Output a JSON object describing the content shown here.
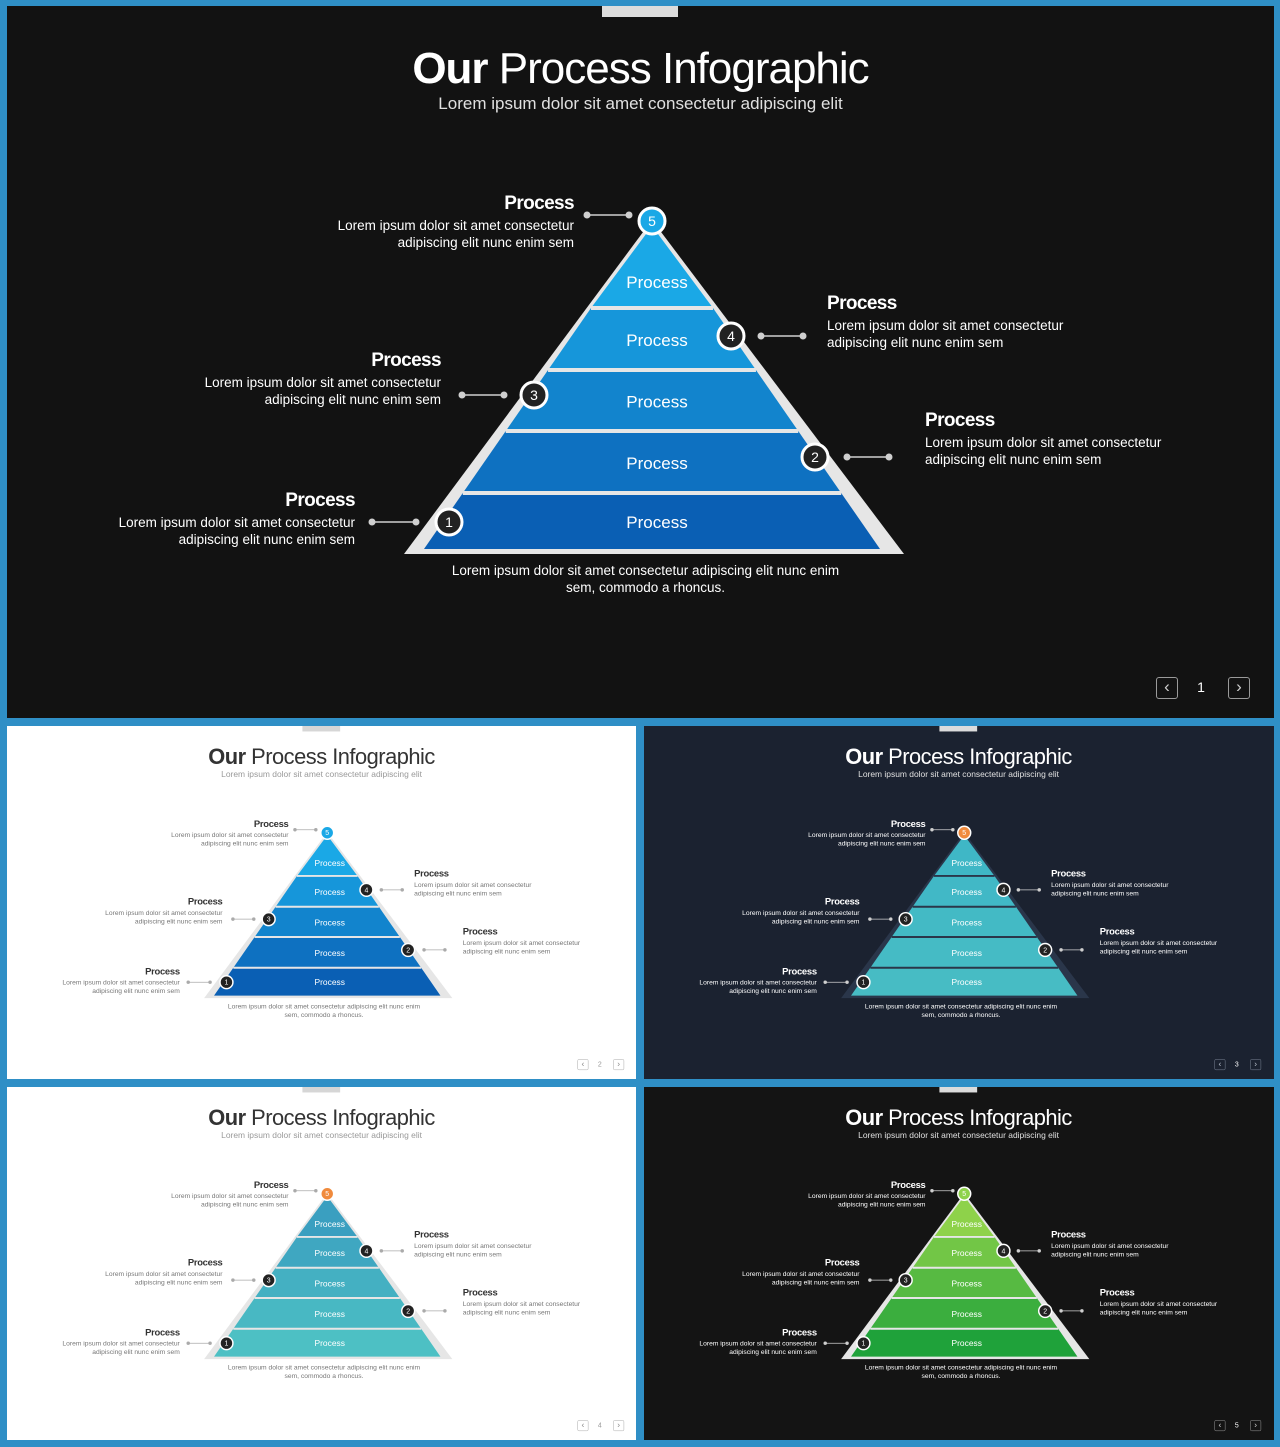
{
  "slides": [
    {
      "title_bold": "Our",
      "title_rest": "Process Infographic",
      "subtitle": "Lorem ipsum dolor sit amet consectetur adipiscing elit",
      "layers": [
        "Process",
        "Process",
        "Process",
        "Process",
        "Process"
      ],
      "steps": [
        {
          "num": "1",
          "heading": "Process",
          "line1": "Lorem ipsum dolor sit amet consectetur",
          "line2": "adipiscing elit nunc enim sem"
        },
        {
          "num": "2",
          "heading": "Process",
          "line1": "Lorem ipsum dolor sit amet consectetur",
          "line2": "adipiscing elit nunc enim sem"
        },
        {
          "num": "3",
          "heading": "Process",
          "line1": "Lorem ipsum dolor sit amet consectetur",
          "line2": "adipiscing elit nunc enim sem"
        },
        {
          "num": "4",
          "heading": "Process",
          "line1": "Lorem ipsum dolor sit amet consectetur",
          "line2": "adipiscing elit nunc enim sem"
        },
        {
          "num": "5",
          "heading": "Process",
          "line1": "Lorem ipsum dolor sit amet consectetur",
          "line2": "adipiscing elit nunc enim sem"
        }
      ],
      "caption_line1": "Lorem ipsum dolor sit amet consectetur adipiscing elit nunc enim",
      "caption_line2": "sem, commodo a rhoncus.",
      "page": "1",
      "colors": {
        "top": "#1aa8e6",
        "bottom": "#0a5fb4",
        "apex": "#1aa8e6",
        "outline": "#e6e6e6"
      }
    },
    {
      "title_bold": "Our",
      "title_rest": "Process Infographic",
      "subtitle": "Lorem ipsum dolor sit amet consectetur adipiscing elit",
      "layers": [
        "Process",
        "Process",
        "Process",
        "Process",
        "Process"
      ],
      "steps": [
        {
          "num": "1",
          "heading": "Process",
          "line1": "Lorem ipsum dolor sit amet consectetur",
          "line2": "adipiscing elit nunc enim sem"
        },
        {
          "num": "2",
          "heading": "Process",
          "line1": "Lorem ipsum dolor sit amet consectetur",
          "line2": "adipiscing elit nunc enim sem"
        },
        {
          "num": "3",
          "heading": "Process",
          "line1": "Lorem ipsum dolor sit amet consectetur",
          "line2": "adipiscing elit nunc enim sem"
        },
        {
          "num": "4",
          "heading": "Process",
          "line1": "Lorem ipsum dolor sit amet consectetur",
          "line2": "adipiscing elit nunc enim sem"
        },
        {
          "num": "5",
          "heading": "Process",
          "line1": "Lorem ipsum dolor sit amet consectetur",
          "line2": "adipiscing elit nunc enim sem"
        }
      ],
      "caption_line1": "Lorem ipsum dolor sit amet consectetur adipiscing elit nunc enim",
      "caption_line2": "sem, commodo a rhoncus.",
      "page": "2",
      "colors": {
        "top": "#1aa8e6",
        "bottom": "#0a5fb4",
        "apex": "#1aa8e6",
        "outline": "#e6e6e6"
      }
    },
    {
      "title_bold": "Our",
      "title_rest": "Process Infographic",
      "subtitle": "Lorem ipsum dolor sit amet consectetur adipiscing elit",
      "layers": [
        "Process",
        "Process",
        "Process",
        "Process",
        "Process"
      ],
      "steps": [
        {
          "num": "1",
          "heading": "Process",
          "line1": "Lorem ipsum dolor sit amet consectetur",
          "line2": "adipiscing elit nunc enim sem"
        },
        {
          "num": "2",
          "heading": "Process",
          "line1": "Lorem ipsum dolor sit amet consectetur",
          "line2": "adipiscing elit nunc enim sem"
        },
        {
          "num": "3",
          "heading": "Process",
          "line1": "Lorem ipsum dolor sit amet consectetur",
          "line2": "adipiscing elit nunc enim sem"
        },
        {
          "num": "4",
          "heading": "Process",
          "line1": "Lorem ipsum dolor sit amet consectetur",
          "line2": "adipiscing elit nunc enim sem"
        },
        {
          "num": "5",
          "heading": "Process",
          "line1": "Lorem ipsum dolor sit amet consectetur",
          "line2": "adipiscing elit nunc enim sem"
        }
      ],
      "caption_line1": "Lorem ipsum dolor sit amet consectetur adipiscing elit nunc enim",
      "caption_line2": "sem, commodo a rhoncus.",
      "page": "3",
      "colors": {
        "top": "#3fb7c6",
        "bottom": "#47bcc4",
        "apex": "#f08a3c",
        "outline": "#2a364a"
      }
    },
    {
      "title_bold": "Our",
      "title_rest": "Process Infographic",
      "subtitle": "Lorem ipsum dolor sit amet consectetur adipiscing elit",
      "layers": [
        "Process",
        "Process",
        "Process",
        "Process",
        "Process"
      ],
      "steps": [
        {
          "num": "1",
          "heading": "Process",
          "line1": "Lorem ipsum dolor sit amet consectetur",
          "line2": "adipiscing elit nunc enim sem"
        },
        {
          "num": "2",
          "heading": "Process",
          "line1": "Lorem ipsum dolor sit amet consectetur",
          "line2": "adipiscing elit nunc enim sem"
        },
        {
          "num": "3",
          "heading": "Process",
          "line1": "Lorem ipsum dolor sit amet consectetur",
          "line2": "adipiscing elit nunc enim sem"
        },
        {
          "num": "4",
          "heading": "Process",
          "line1": "Lorem ipsum dolor sit amet consectetur",
          "line2": "adipiscing elit nunc enim sem"
        },
        {
          "num": "5",
          "heading": "Process",
          "line1": "Lorem ipsum dolor sit amet consectetur",
          "line2": "adipiscing elit nunc enim sem"
        }
      ],
      "caption_line1": "Lorem ipsum dolor sit amet consectetur adipiscing elit nunc enim",
      "caption_line2": "sem, commodo a rhoncus.",
      "page": "4",
      "colors": {
        "top": "#3a9fc0",
        "bottom": "#4dc0c4",
        "apex": "#f08a3c",
        "outline": "#e6e6e6"
      }
    },
    {
      "title_bold": "Our",
      "title_rest": "Process Infographic",
      "subtitle": "Lorem ipsum dolor sit amet consectetur adipiscing elit",
      "layers": [
        "Process",
        "Process",
        "Process",
        "Process",
        "Process"
      ],
      "steps": [
        {
          "num": "1",
          "heading": "Process",
          "line1": "Lorem ipsum dolor sit amet consectetur",
          "line2": "adipiscing elit nunc enim sem"
        },
        {
          "num": "2",
          "heading": "Process",
          "line1": "Lorem ipsum dolor sit amet consectetur",
          "line2": "adipiscing elit nunc enim sem"
        },
        {
          "num": "3",
          "heading": "Process",
          "line1": "Lorem ipsum dolor sit amet consectetur",
          "line2": "adipiscing elit nunc enim sem"
        },
        {
          "num": "4",
          "heading": "Process",
          "line1": "Lorem ipsum dolor sit amet consectetur",
          "line2": "adipiscing elit nunc enim sem"
        },
        {
          "num": "5",
          "heading": "Process",
          "line1": "Lorem ipsum dolor sit amet consectetur",
          "line2": "adipiscing elit nunc enim sem"
        }
      ],
      "caption_line1": "Lorem ipsum dolor sit amet consectetur adipiscing elit nunc enim",
      "caption_line2": "sem, commodo a rhoncus.",
      "page": "5",
      "colors": {
        "top": "#8ed24a",
        "bottom": "#1fa23a",
        "apex": "#8ed24a",
        "outline": "#e6e6e6"
      }
    }
  ],
  "icons": {
    "prev": "chevron-left-icon",
    "next": "chevron-right-icon"
  }
}
